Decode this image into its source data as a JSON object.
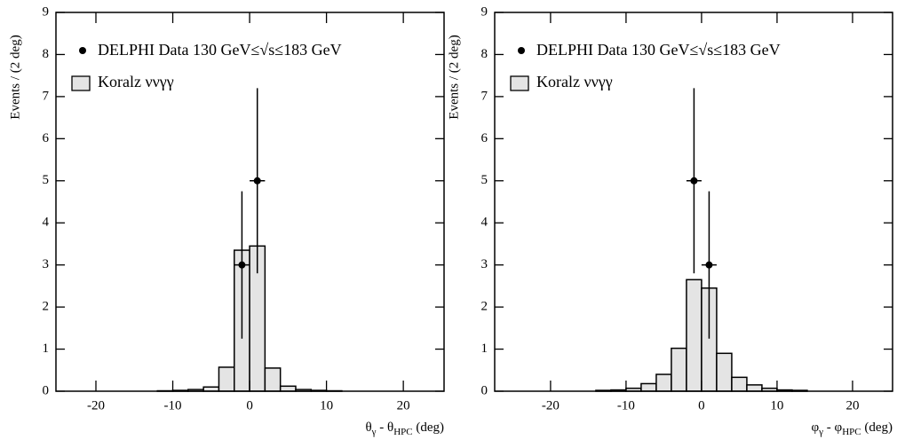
{
  "chart_data": [
    {
      "type": "histogram",
      "ylabel": "Events / (2 deg)",
      "xlabel_parts": [
        "θ",
        "γ",
        " - θ",
        "HPC",
        " (deg)"
      ],
      "xlim": [
        -25.2,
        25.3
      ],
      "ylim": [
        0,
        9
      ],
      "xticks": [
        -20,
        -10,
        0,
        10,
        20
      ],
      "yticks": [
        0,
        1,
        2,
        3,
        4,
        5,
        6,
        7,
        8,
        9
      ],
      "histogram": {
        "name": "Koralz ννγγ",
        "color": "#e4e4e4",
        "bins": [
          -12,
          -10,
          -8,
          -6,
          -4,
          -2,
          0,
          2,
          4,
          6,
          8,
          10,
          12
        ],
        "values": [
          0.01,
          0.02,
          0.04,
          0.1,
          0.57,
          3.35,
          3.45,
          0.55,
          0.12,
          0.04,
          0.02,
          0.01
        ]
      },
      "points": {
        "name": "DELPHI Data 130 GeV≤√s≤183 GeV",
        "color": "#000000",
        "x": [
          -1,
          1
        ],
        "values": [
          3,
          5
        ],
        "xerr": [
          1,
          1
        ],
        "yerr": [
          1.75,
          2.2
        ]
      }
    },
    {
      "type": "histogram",
      "ylabel": "Events / (2 deg)",
      "xlabel_parts": [
        "φ",
        "γ",
        " - φ",
        "HPC",
        " (deg)"
      ],
      "xlim": [
        -27.4,
        25.3
      ],
      "ylim": [
        0,
        9
      ],
      "xticks": [
        -20,
        -10,
        0,
        10,
        20
      ],
      "yticks": [
        0,
        1,
        2,
        3,
        4,
        5,
        6,
        7,
        8,
        9
      ],
      "histogram": {
        "name": "Koralz ννγγ",
        "color": "#e4e4e4",
        "bins": [
          -14,
          -12,
          -10,
          -8,
          -6,
          -4,
          -2,
          0,
          2,
          4,
          6,
          8,
          10,
          12,
          14
        ],
        "values": [
          0.02,
          0.03,
          0.07,
          0.18,
          0.4,
          1.02,
          2.65,
          2.45,
          0.9,
          0.33,
          0.15,
          0.07,
          0.03,
          0.02
        ]
      },
      "points": {
        "name": "DELPHI Data 130 GeV≤√s≤183 GeV",
        "color": "#000000",
        "x": [
          -1,
          1
        ],
        "values": [
          5,
          3
        ],
        "xerr": [
          1,
          1
        ],
        "yerr": [
          2.2,
          1.75
        ]
      }
    }
  ]
}
